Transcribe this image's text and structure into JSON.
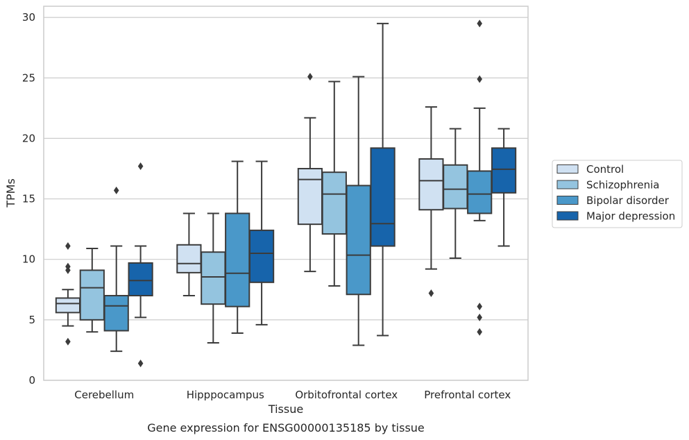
{
  "caption": "Gene expression for ENSG00000135185 by tissue",
  "chart_data": {
    "type": "boxplot",
    "xlabel": "Tissue",
    "ylabel": "TPMs",
    "ylim": [
      0,
      31
    ],
    "yticks": [
      0,
      5,
      10,
      15,
      20,
      25,
      30
    ],
    "grid": "horizontal",
    "legend_position": "right",
    "categories": [
      "Cerebellum",
      "Hipppocampus",
      "Orbitofrontal cortex",
      "Prefrontal cortex"
    ],
    "series": [
      {
        "name": "Control",
        "color": "#d0e1f2",
        "boxes": [
          {
            "whislo": 4.5,
            "q1": 5.6,
            "med": 6.35,
            "q3": 6.8,
            "whishi": 7.5,
            "fliers": [
              3.2,
              9.1,
              9.4,
              11.1
            ]
          },
          {
            "whislo": 7.0,
            "q1": 8.9,
            "med": 9.65,
            "q3": 11.2,
            "whishi": 13.8,
            "fliers": []
          },
          {
            "whislo": 9.0,
            "q1": 12.9,
            "med": 16.6,
            "q3": 17.5,
            "whishi": 21.7,
            "fliers": [
              25.1
            ]
          },
          {
            "whislo": 9.2,
            "q1": 14.1,
            "med": 16.5,
            "q3": 18.3,
            "whishi": 22.6,
            "fliers": [
              7.2
            ]
          }
        ]
      },
      {
        "name": "Schizophrenia",
        "color": "#94c4df",
        "boxes": [
          {
            "whislo": 4.0,
            "q1": 5.0,
            "med": 7.65,
            "q3": 9.1,
            "whishi": 10.9,
            "fliers": []
          },
          {
            "whislo": 3.1,
            "q1": 6.3,
            "med": 8.55,
            "q3": 10.6,
            "whishi": 13.8,
            "fliers": []
          },
          {
            "whislo": 7.8,
            "q1": 12.1,
            "med": 15.4,
            "q3": 17.2,
            "whishi": 24.7,
            "fliers": []
          },
          {
            "whislo": 10.1,
            "q1": 14.2,
            "med": 15.8,
            "q3": 17.8,
            "whishi": 20.8,
            "fliers": []
          }
        ]
      },
      {
        "name": "Bipolar disorder",
        "color": "#4a98c9",
        "boxes": [
          {
            "whislo": 2.4,
            "q1": 4.1,
            "med": 6.15,
            "q3": 7.0,
            "whishi": 11.1,
            "fliers": [
              15.7
            ]
          },
          {
            "whislo": 3.9,
            "q1": 6.1,
            "med": 8.85,
            "q3": 13.8,
            "whishi": 18.1,
            "fliers": []
          },
          {
            "whislo": 2.9,
            "q1": 7.1,
            "med": 10.35,
            "q3": 16.1,
            "whishi": 25.1,
            "fliers": []
          },
          {
            "whislo": 13.2,
            "q1": 13.8,
            "med": 15.4,
            "q3": 17.3,
            "whishi": 22.5,
            "fliers": [
              4.0,
              5.2,
              6.1,
              24.9,
              29.5
            ]
          }
        ]
      },
      {
        "name": "Major depression",
        "color": "#1764ab",
        "boxes": [
          {
            "whislo": 5.2,
            "q1": 7.0,
            "med": 8.25,
            "q3": 9.7,
            "whishi": 11.1,
            "fliers": [
              1.4,
              17.7
            ]
          },
          {
            "whislo": 4.6,
            "q1": 8.1,
            "med": 10.5,
            "q3": 12.4,
            "whishi": 18.1,
            "fliers": []
          },
          {
            "whislo": 3.7,
            "q1": 11.1,
            "med": 12.95,
            "q3": 19.2,
            "whishi": 29.5,
            "fliers": []
          },
          {
            "whislo": 11.1,
            "q1": 15.5,
            "med": 17.45,
            "q3": 19.2,
            "whishi": 20.8,
            "fliers": []
          }
        ]
      }
    ]
  }
}
